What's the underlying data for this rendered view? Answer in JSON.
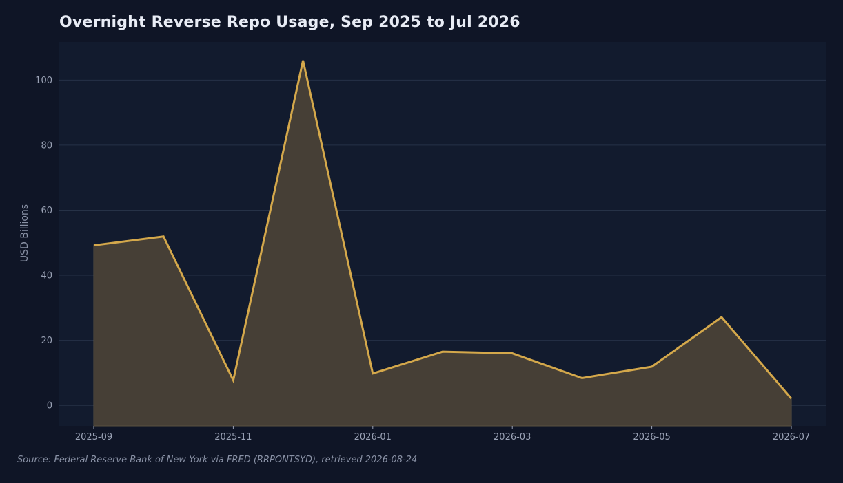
{
  "chart_data": {
    "type": "area",
    "title": "Overnight Reverse Repo Usage, Sep 2025 to Jul 2026",
    "xlabel": "",
    "ylabel": "USD Billions",
    "x": [
      "2025-09",
      "2025-10",
      "2025-11",
      "2025-12",
      "2026-01",
      "2026-02",
      "2026-03",
      "2026-04",
      "2026-05",
      "2026-06",
      "2026-07"
    ],
    "values": [
      49.2,
      51.9,
      7.7,
      106.0,
      9.8,
      16.5,
      16.0,
      8.4,
      11.9,
      27.1,
      2.1
    ],
    "x_ticks": [
      "2025-09",
      "2025-11",
      "2026-01",
      "2026-03",
      "2026-05",
      "2026-07"
    ],
    "y_ticks": [
      0,
      20,
      40,
      60,
      80,
      100
    ],
    "ylim": [
      -6.3,
      111.7
    ],
    "grid": "horizontal",
    "legend": "none",
    "colors": {
      "background": "#0f1526",
      "plot_background": "#121b2e",
      "line": "#d4a84b",
      "fill": "#463f36",
      "grid": "#263247",
      "text": "#9aa2b5",
      "title": "#e8ecf5"
    }
  },
  "source": "Source: Federal Reserve Bank of New York via FRED (RRPONTSYD), retrieved 2026-08-24"
}
